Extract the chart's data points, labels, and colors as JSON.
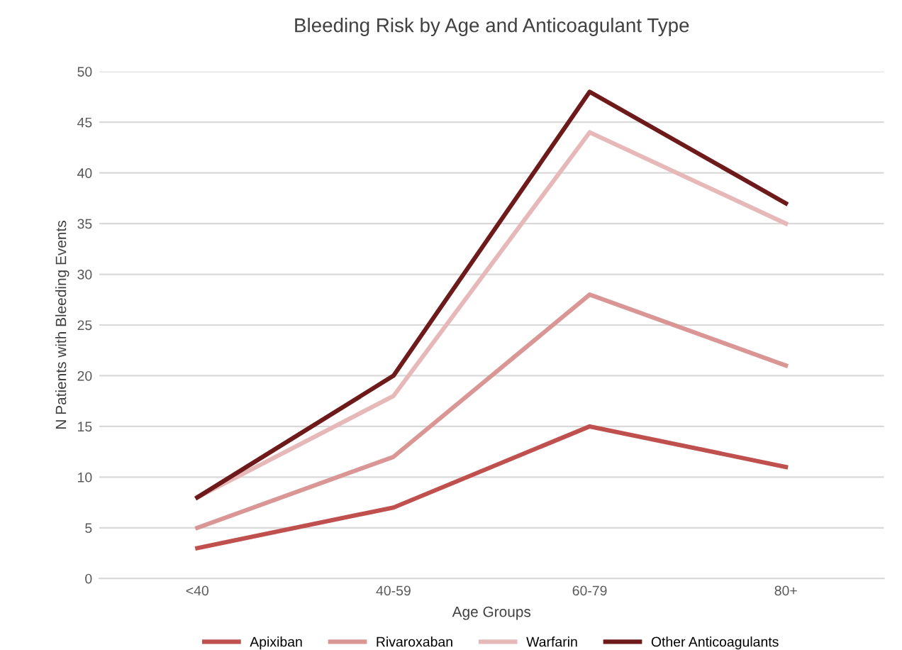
{
  "chart_data": {
    "type": "line",
    "title": "Bleeding Risk by Age and Anticoagulant Type",
    "xlabel": "Age Groups",
    "ylabel": "N Patients with Bleeding Events",
    "categories": [
      "<40",
      "40-59",
      "60-79",
      "80+"
    ],
    "series": [
      {
        "name": "Apixiban",
        "color": "#c0504d",
        "values": [
          3,
          7,
          15,
          11
        ]
      },
      {
        "name": "Rivaroxaban",
        "color": "#d99694",
        "values": [
          5,
          12,
          28,
          21
        ]
      },
      {
        "name": "Warfarin",
        "color": "#e6b9b8",
        "values": [
          8,
          18,
          44,
          35
        ]
      },
      {
        "name": "Other Anticoagulants",
        "color": "#6e1a1a",
        "values": [
          8,
          20,
          48,
          37
        ]
      }
    ],
    "ylim": [
      0,
      50
    ],
    "yticks": [
      0,
      5,
      10,
      15,
      20,
      25,
      30,
      35,
      40,
      45,
      50
    ],
    "grid": "y",
    "legend": "bottom",
    "marker": "none",
    "line_style": "solid"
  }
}
